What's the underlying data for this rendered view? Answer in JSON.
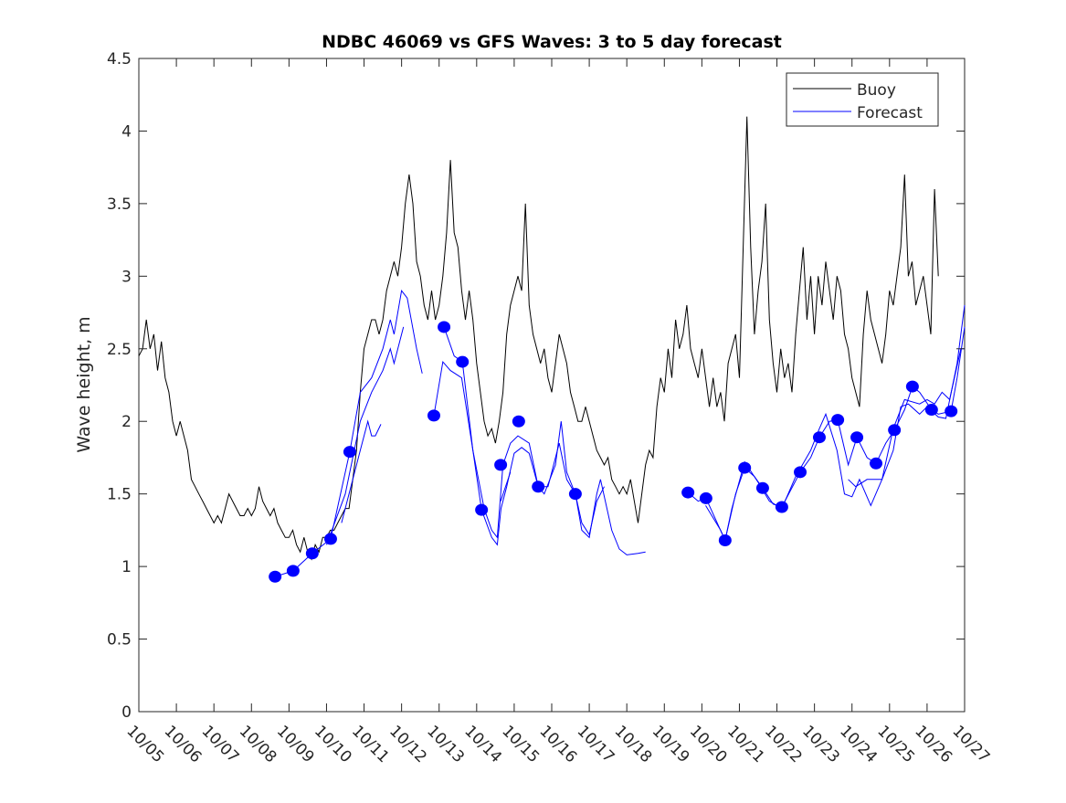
{
  "chart_data": {
    "type": "line",
    "title": "NDBC 46069 vs GFS Waves: 3 to 5 day forecast",
    "xlabel": "",
    "ylabel": "Wave height, m",
    "x_units": "days since 10/05",
    "xlim": [
      0,
      22
    ],
    "ylim": [
      0,
      4.5
    ],
    "grid": false,
    "legend_position": "top-right",
    "x_tick_labels": [
      "10/05",
      "10/06",
      "10/07",
      "10/08",
      "10/09",
      "10/10",
      "10/11",
      "10/12",
      "10/13",
      "10/14",
      "10/15",
      "10/16",
      "10/17",
      "10/18",
      "10/19",
      "10/20",
      "10/21",
      "10/22",
      "10/23",
      "10/24",
      "10/25",
      "10/26",
      "10/27"
    ],
    "y_ticks": [
      0,
      0.5,
      1,
      1.5,
      2,
      2.5,
      3,
      3.5,
      4,
      4.5
    ],
    "y_tick_labels": [
      "0",
      "0.5",
      "1",
      "1.5",
      "2",
      "2.5",
      "3",
      "3.5",
      "4",
      "4.5"
    ],
    "colors": {
      "buoy": "#000000",
      "forecast": "#0000ff"
    },
    "legend": [
      {
        "name": "Buoy",
        "color": "#000000"
      },
      {
        "name": "Forecast",
        "color": "#0000ff"
      }
    ],
    "buoy": [
      [
        0,
        2.45
      ],
      [
        0.1,
        2.5
      ],
      [
        0.2,
        2.7
      ],
      [
        0.3,
        2.5
      ],
      [
        0.4,
        2.6
      ],
      [
        0.5,
        2.35
      ],
      [
        0.6,
        2.55
      ],
      [
        0.7,
        2.3
      ],
      [
        0.8,
        2.2
      ],
      [
        0.9,
        2.0
      ],
      [
        1.0,
        1.9
      ],
      [
        1.1,
        2.0
      ],
      [
        1.2,
        1.9
      ],
      [
        1.3,
        1.8
      ],
      [
        1.4,
        1.6
      ],
      [
        1.5,
        1.55
      ],
      [
        1.6,
        1.5
      ],
      [
        1.7,
        1.45
      ],
      [
        1.8,
        1.4
      ],
      [
        1.9,
        1.35
      ],
      [
        2.0,
        1.3
      ],
      [
        2.1,
        1.35
      ],
      [
        2.2,
        1.3
      ],
      [
        2.3,
        1.4
      ],
      [
        2.4,
        1.5
      ],
      [
        2.5,
        1.45
      ],
      [
        2.6,
        1.4
      ],
      [
        2.7,
        1.35
      ],
      [
        2.8,
        1.35
      ],
      [
        2.9,
        1.4
      ],
      [
        3.0,
        1.35
      ],
      [
        3.1,
        1.4
      ],
      [
        3.2,
        1.55
      ],
      [
        3.3,
        1.45
      ],
      [
        3.4,
        1.4
      ],
      [
        3.5,
        1.35
      ],
      [
        3.6,
        1.4
      ],
      [
        3.7,
        1.3
      ],
      [
        3.8,
        1.25
      ],
      [
        3.9,
        1.2
      ],
      [
        4.0,
        1.2
      ],
      [
        4.1,
        1.25
      ],
      [
        4.2,
        1.15
      ],
      [
        4.3,
        1.1
      ],
      [
        4.4,
        1.2
      ],
      [
        4.5,
        1.1
      ],
      [
        4.6,
        1.05
      ],
      [
        4.7,
        1.15
      ],
      [
        4.8,
        1.1
      ],
      [
        4.9,
        1.2
      ],
      [
        5.0,
        1.2
      ],
      [
        5.1,
        1.25
      ],
      [
        5.2,
        1.25
      ],
      [
        5.3,
        1.3
      ],
      [
        5.4,
        1.35
      ],
      [
        5.5,
        1.4
      ],
      [
        5.6,
        1.4
      ],
      [
        5.7,
        1.6
      ],
      [
        5.8,
        1.8
      ],
      [
        5.9,
        2.2
      ],
      [
        6.0,
        2.5
      ],
      [
        6.1,
        2.6
      ],
      [
        6.2,
        2.7
      ],
      [
        6.3,
        2.7
      ],
      [
        6.4,
        2.6
      ],
      [
        6.5,
        2.7
      ],
      [
        6.6,
        2.9
      ],
      [
        6.7,
        3.0
      ],
      [
        6.8,
        3.1
      ],
      [
        6.9,
        3.0
      ],
      [
        7.0,
        3.2
      ],
      [
        7.1,
        3.5
      ],
      [
        7.2,
        3.7
      ],
      [
        7.3,
        3.5
      ],
      [
        7.4,
        3.1
      ],
      [
        7.5,
        3.0
      ],
      [
        7.6,
        2.8
      ],
      [
        7.7,
        2.7
      ],
      [
        7.8,
        2.9
      ],
      [
        7.9,
        2.7
      ],
      [
        8.0,
        2.8
      ],
      [
        8.1,
        3.0
      ],
      [
        8.2,
        3.3
      ],
      [
        8.3,
        3.8
      ],
      [
        8.4,
        3.3
      ],
      [
        8.5,
        3.2
      ],
      [
        8.6,
        2.9
      ],
      [
        8.7,
        2.7
      ],
      [
        8.8,
        2.9
      ],
      [
        8.9,
        2.7
      ],
      [
        9.0,
        2.4
      ],
      [
        9.1,
        2.2
      ],
      [
        9.2,
        2.0
      ],
      [
        9.3,
        1.9
      ],
      [
        9.4,
        1.95
      ],
      [
        9.5,
        1.85
      ],
      [
        9.6,
        2.0
      ],
      [
        9.7,
        2.2
      ],
      [
        9.8,
        2.6
      ],
      [
        9.9,
        2.8
      ],
      [
        10.0,
        2.9
      ],
      [
        10.1,
        3.0
      ],
      [
        10.2,
        2.9
      ],
      [
        10.3,
        3.5
      ],
      [
        10.4,
        2.8
      ],
      [
        10.5,
        2.6
      ],
      [
        10.6,
        2.5
      ],
      [
        10.7,
        2.4
      ],
      [
        10.8,
        2.5
      ],
      [
        10.9,
        2.3
      ],
      [
        11.0,
        2.2
      ],
      [
        11.1,
        2.4
      ],
      [
        11.2,
        2.6
      ],
      [
        11.3,
        2.5
      ],
      [
        11.4,
        2.4
      ],
      [
        11.5,
        2.2
      ],
      [
        11.6,
        2.1
      ],
      [
        11.7,
        2.0
      ],
      [
        11.8,
        2.0
      ],
      [
        11.9,
        2.1
      ],
      [
        12.0,
        2.0
      ],
      [
        12.1,
        1.9
      ],
      [
        12.2,
        1.8
      ],
      [
        12.3,
        1.75
      ],
      [
        12.4,
        1.7
      ],
      [
        12.5,
        1.75
      ],
      [
        12.6,
        1.6
      ],
      [
        12.7,
        1.55
      ],
      [
        12.8,
        1.5
      ],
      [
        12.9,
        1.55
      ],
      [
        13.0,
        1.5
      ],
      [
        13.1,
        1.6
      ],
      [
        13.2,
        1.45
      ],
      [
        13.3,
        1.3
      ],
      [
        13.4,
        1.5
      ],
      [
        13.5,
        1.7
      ],
      [
        13.6,
        1.8
      ],
      [
        13.7,
        1.75
      ],
      [
        13.8,
        2.1
      ],
      [
        13.9,
        2.3
      ],
      [
        14.0,
        2.2
      ],
      [
        14.1,
        2.5
      ],
      [
        14.2,
        2.3
      ],
      [
        14.3,
        2.7
      ],
      [
        14.4,
        2.5
      ],
      [
        14.5,
        2.6
      ],
      [
        14.6,
        2.8
      ],
      [
        14.7,
        2.5
      ],
      [
        14.8,
        2.4
      ],
      [
        14.9,
        2.3
      ],
      [
        15.0,
        2.5
      ],
      [
        15.1,
        2.3
      ],
      [
        15.2,
        2.1
      ],
      [
        15.3,
        2.3
      ],
      [
        15.4,
        2.1
      ],
      [
        15.5,
        2.2
      ],
      [
        15.6,
        2.0
      ],
      [
        15.7,
        2.4
      ],
      [
        15.8,
        2.5
      ],
      [
        15.9,
        2.6
      ],
      [
        16.0,
        2.3
      ],
      [
        16.1,
        3.2
      ],
      [
        16.2,
        4.1
      ],
      [
        16.3,
        3.2
      ],
      [
        16.4,
        2.6
      ],
      [
        16.5,
        2.9
      ],
      [
        16.6,
        3.1
      ],
      [
        16.7,
        3.5
      ],
      [
        16.8,
        2.7
      ],
      [
        16.9,
        2.4
      ],
      [
        17.0,
        2.2
      ],
      [
        17.1,
        2.5
      ],
      [
        17.2,
        2.3
      ],
      [
        17.3,
        2.4
      ],
      [
        17.4,
        2.2
      ],
      [
        17.5,
        2.6
      ],
      [
        17.6,
        2.9
      ],
      [
        17.7,
        3.2
      ],
      [
        17.8,
        2.7
      ],
      [
        17.9,
        3.0
      ],
      [
        18.0,
        2.6
      ],
      [
        18.1,
        3.0
      ],
      [
        18.2,
        2.8
      ],
      [
        18.3,
        3.1
      ],
      [
        18.4,
        2.9
      ],
      [
        18.5,
        2.7
      ],
      [
        18.6,
        3.0
      ],
      [
        18.7,
        2.9
      ],
      [
        18.8,
        2.6
      ],
      [
        18.9,
        2.5
      ],
      [
        19.0,
        2.3
      ],
      [
        19.1,
        2.2
      ],
      [
        19.2,
        2.1
      ],
      [
        19.3,
        2.6
      ],
      [
        19.4,
        2.9
      ],
      [
        19.5,
        2.7
      ],
      [
        19.6,
        2.6
      ],
      [
        19.7,
        2.5
      ],
      [
        19.8,
        2.4
      ],
      [
        19.9,
        2.6
      ],
      [
        20.0,
        2.9
      ],
      [
        20.1,
        2.8
      ],
      [
        20.2,
        3.0
      ],
      [
        20.3,
        3.2
      ],
      [
        20.4,
        3.7
      ],
      [
        20.5,
        3.0
      ],
      [
        20.6,
        3.1
      ],
      [
        20.7,
        2.8
      ],
      [
        20.8,
        2.9
      ],
      [
        20.9,
        3.0
      ],
      [
        21.0,
        2.8
      ],
      [
        21.1,
        2.6
      ],
      [
        21.2,
        3.6
      ],
      [
        21.3,
        3.0
      ]
    ],
    "forecast_lines": [
      [
        [
          3.63,
          0.93
        ],
        [
          4.11,
          0.97
        ],
        [
          4.62,
          1.09
        ],
        [
          5.11,
          1.19
        ],
        [
          5.62,
          1.79
        ],
        [
          5.9,
          2.2
        ],
        [
          6.2,
          2.3
        ],
        [
          6.5,
          2.5
        ],
        [
          6.7,
          2.7
        ],
        [
          6.8,
          2.6
        ],
        [
          7.0,
          2.9
        ],
        [
          7.15,
          2.85
        ],
        [
          7.4,
          2.5
        ],
        [
          7.55,
          2.33
        ]
      ],
      [
        [
          5.0,
          1.15
        ],
        [
          5.5,
          1.5
        ],
        [
          5.9,
          2.0
        ],
        [
          6.2,
          2.2
        ],
        [
          6.5,
          2.35
        ],
        [
          6.7,
          2.5
        ],
        [
          6.8,
          2.4
        ],
        [
          7.05,
          2.65
        ]
      ],
      [
        [
          5.4,
          1.3
        ],
        [
          5.9,
          1.8
        ],
        [
          6.1,
          2.0
        ],
        [
          6.2,
          1.9
        ],
        [
          6.3,
          1.9
        ],
        [
          6.45,
          1.98
        ]
      ],
      [
        [
          7.86,
          2.04
        ],
        [
          8.1,
          2.41
        ],
        [
          8.3,
          2.35
        ],
        [
          8.6,
          2.3
        ],
        [
          8.9,
          1.8
        ],
        [
          9.2,
          1.4
        ],
        [
          9.4,
          1.25
        ],
        [
          9.55,
          1.2
        ],
        [
          9.7,
          1.7
        ],
        [
          9.9,
          1.85
        ],
        [
          10.1,
          1.9
        ],
        [
          10.4,
          1.85
        ],
        [
          10.64,
          1.55
        ],
        [
          10.8,
          1.5
        ],
        [
          11.1,
          1.7
        ],
        [
          11.25,
          2.0
        ],
        [
          11.4,
          1.65
        ],
        [
          11.63,
          1.5
        ],
        [
          11.8,
          1.25
        ],
        [
          12.0,
          1.2
        ],
        [
          12.2,
          1.5
        ],
        [
          12.3,
          1.6
        ],
        [
          12.6,
          1.25
        ],
        [
          12.8,
          1.12
        ],
        [
          13.0,
          1.08
        ],
        [
          13.3,
          1.09
        ],
        [
          13.5,
          1.1
        ]
      ],
      [
        [
          8.13,
          2.65
        ],
        [
          8.4,
          2.45
        ],
        [
          8.62,
          2.41
        ],
        [
          8.9,
          1.8
        ],
        [
          9.13,
          1.39
        ],
        [
          9.4,
          1.2
        ],
        [
          9.55,
          1.15
        ],
        [
          9.65,
          1.4
        ],
        [
          9.8,
          1.55
        ],
        [
          10.0,
          1.78
        ],
        [
          10.2,
          1.82
        ],
        [
          10.4,
          1.78
        ],
        [
          10.64,
          1.55
        ],
        [
          10.9,
          1.55
        ],
        [
          11.2,
          1.85
        ],
        [
          11.4,
          1.6
        ],
        [
          11.63,
          1.5
        ],
        [
          11.8,
          1.3
        ],
        [
          12.0,
          1.22
        ],
        [
          12.2,
          1.45
        ],
        [
          12.4,
          1.55
        ]
      ],
      [
        [
          9.64,
          1.45
        ],
        [
          9.9,
          1.65
        ]
      ],
      [
        [
          14.63,
          1.51
        ],
        [
          14.9,
          1.45
        ],
        [
          15.11,
          1.47
        ],
        [
          15.62,
          1.18
        ],
        [
          15.9,
          1.5
        ],
        [
          16.14,
          1.68
        ],
        [
          16.4,
          1.62
        ],
        [
          16.62,
          1.54
        ],
        [
          16.9,
          1.43
        ],
        [
          17.13,
          1.41
        ],
        [
          17.62,
          1.65
        ],
        [
          17.9,
          1.75
        ],
        [
          18.13,
          1.89
        ],
        [
          18.4,
          2.0
        ],
        [
          18.62,
          2.01
        ],
        [
          18.9,
          1.7
        ],
        [
          19.13,
          1.89
        ],
        [
          19.4,
          1.75
        ],
        [
          19.64,
          1.71
        ],
        [
          19.9,
          1.85
        ],
        [
          20.13,
          1.94
        ],
        [
          20.4,
          2.08
        ],
        [
          20.61,
          2.24
        ],
        [
          20.8,
          2.2
        ],
        [
          21.12,
          2.08
        ],
        [
          21.3,
          2.05
        ],
        [
          21.64,
          2.07
        ],
        [
          21.8,
          2.3
        ],
        [
          22.0,
          2.65
        ]
      ],
      [
        [
          15.1,
          1.42
        ],
        [
          15.5,
          1.25
        ],
        [
          15.62,
          1.18
        ],
        [
          15.8,
          1.4
        ],
        [
          16.14,
          1.72
        ],
        [
          16.5,
          1.58
        ],
        [
          16.8,
          1.45
        ],
        [
          17.13,
          1.4
        ],
        [
          17.5,
          1.62
        ],
        [
          17.9,
          1.8
        ],
        [
          18.13,
          1.95
        ],
        [
          18.3,
          2.05
        ],
        [
          18.6,
          1.8
        ],
        [
          18.8,
          1.5
        ],
        [
          19.0,
          1.48
        ],
        [
          19.2,
          1.6
        ],
        [
          19.5,
          1.42
        ],
        [
          19.8,
          1.6
        ],
        [
          20.1,
          1.8
        ],
        [
          20.3,
          2.1
        ],
        [
          20.5,
          2.12
        ],
        [
          20.8,
          2.05
        ],
        [
          21.0,
          2.1
        ],
        [
          21.3,
          2.03
        ],
        [
          21.5,
          2.02
        ],
        [
          21.8,
          2.4
        ],
        [
          22.0,
          2.8
        ]
      ],
      [
        [
          18.9,
          1.6
        ],
        [
          19.1,
          1.55
        ],
        [
          19.4,
          1.6
        ],
        [
          19.8,
          1.6
        ],
        [
          20.1,
          1.95
        ],
        [
          20.4,
          2.15
        ],
        [
          20.8,
          2.12
        ],
        [
          21.0,
          2.15
        ],
        [
          21.2,
          2.12
        ],
        [
          21.4,
          2.2
        ],
        [
          21.6,
          2.15
        ],
        [
          21.9,
          2.5
        ],
        [
          22.0,
          2.5
        ]
      ]
    ],
    "forecast_markers": [
      [
        3.63,
        0.93
      ],
      [
        4.11,
        0.97
      ],
      [
        4.62,
        1.09
      ],
      [
        5.11,
        1.19
      ],
      [
        5.62,
        1.79
      ],
      [
        7.86,
        2.04
      ],
      [
        8.13,
        2.65
      ],
      [
        8.62,
        2.41
      ],
      [
        9.13,
        1.39
      ],
      [
        9.64,
        1.7
      ],
      [
        10.12,
        2.0
      ],
      [
        10.64,
        1.55
      ],
      [
        11.63,
        1.5
      ],
      [
        14.63,
        1.51
      ],
      [
        15.11,
        1.47
      ],
      [
        15.62,
        1.18
      ],
      [
        16.14,
        1.68
      ],
      [
        16.62,
        1.54
      ],
      [
        17.13,
        1.41
      ],
      [
        17.62,
        1.65
      ],
      [
        18.13,
        1.89
      ],
      [
        18.62,
        2.01
      ],
      [
        19.13,
        1.89
      ],
      [
        19.64,
        1.71
      ],
      [
        20.13,
        1.94
      ],
      [
        20.61,
        2.24
      ],
      [
        21.12,
        2.08
      ],
      [
        21.64,
        2.07
      ]
    ]
  }
}
